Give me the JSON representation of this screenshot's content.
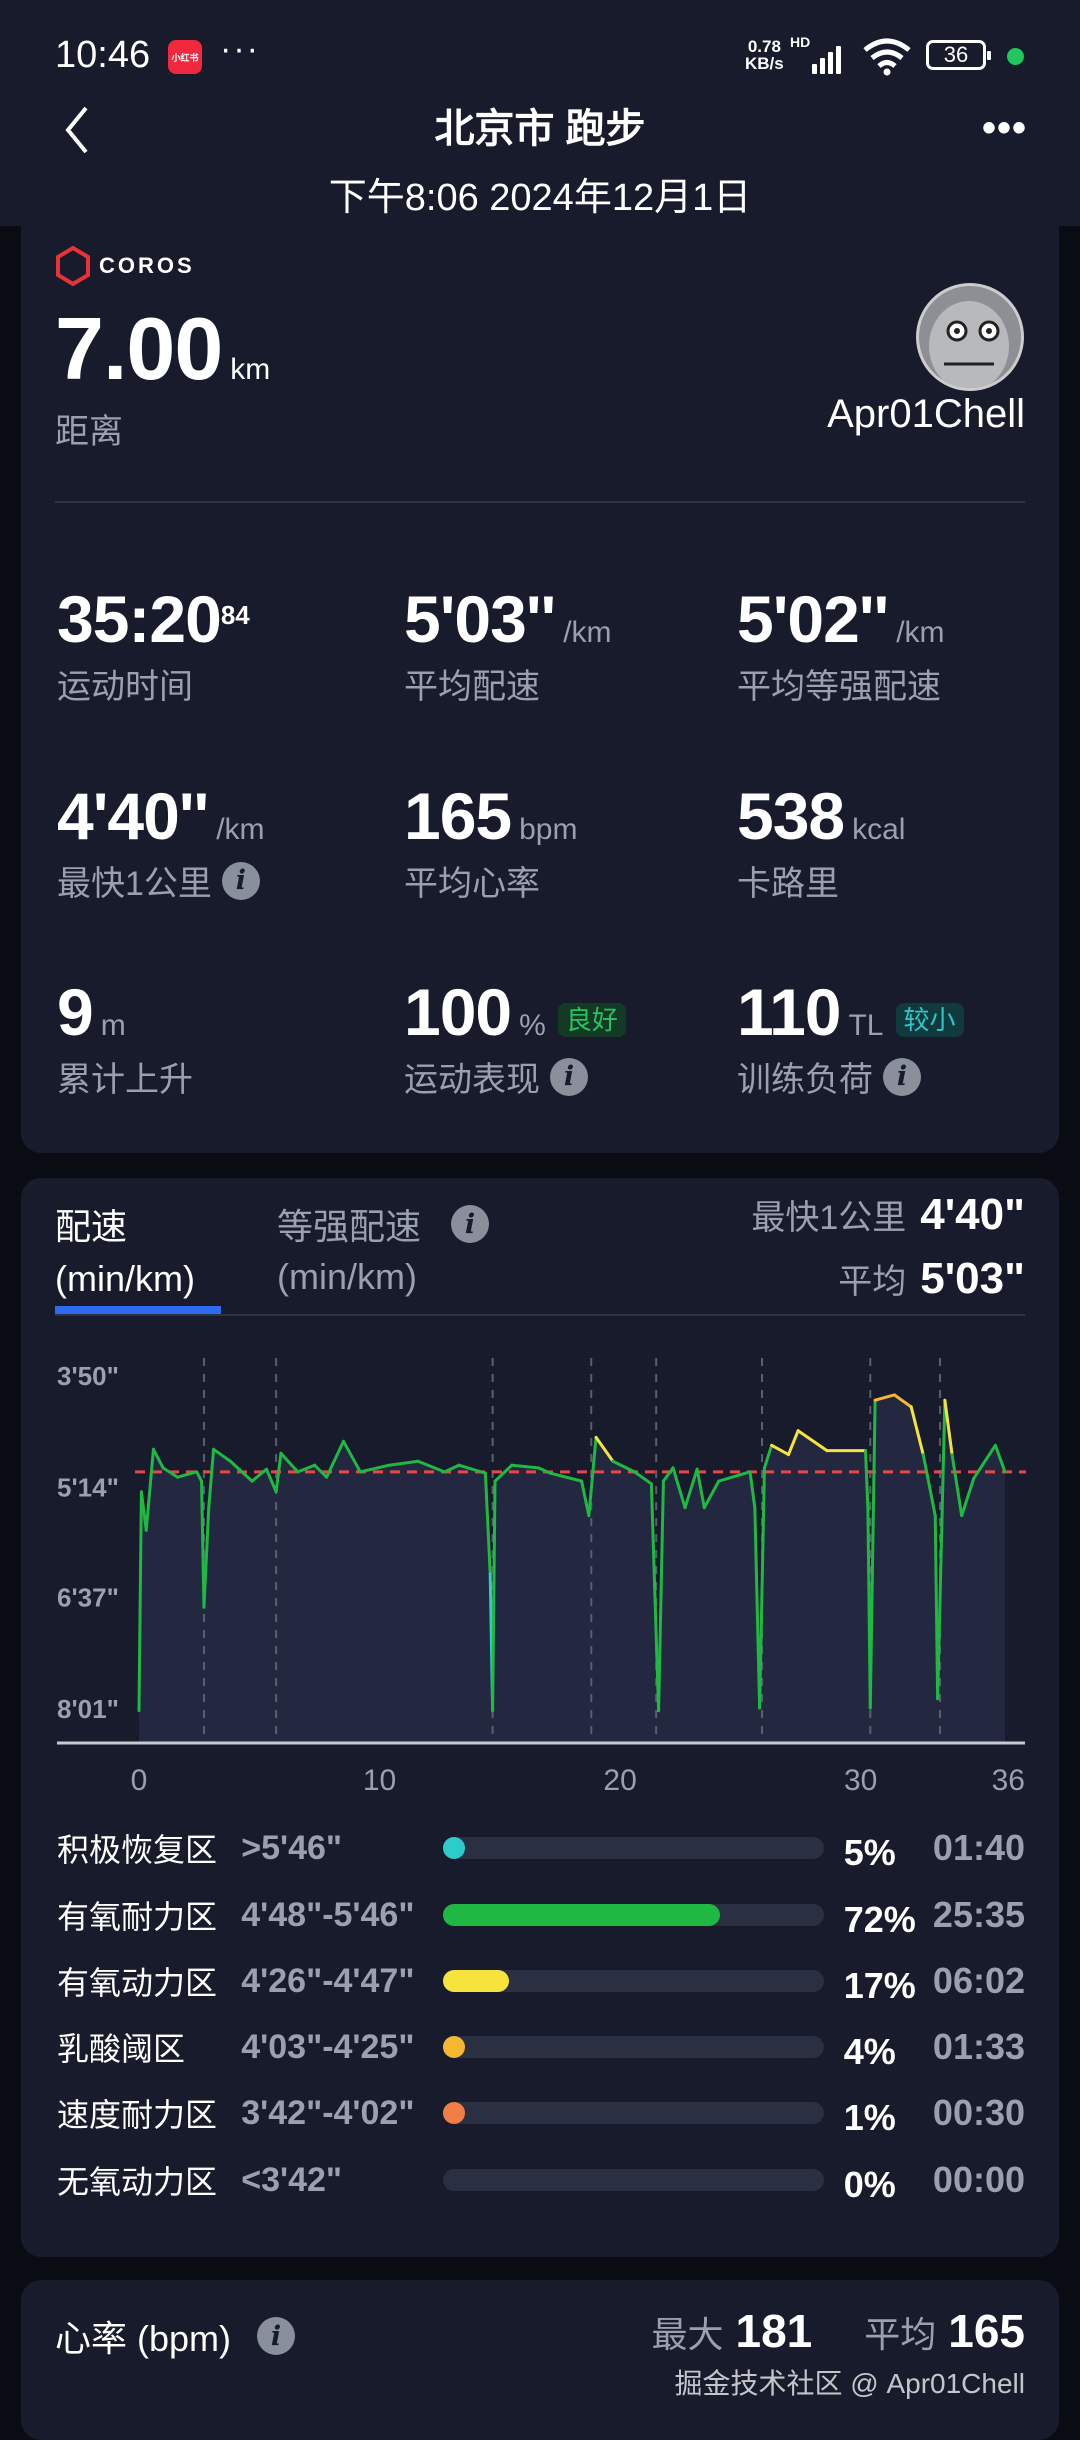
{
  "status_bar": {
    "time": "10:46",
    "app_badge": "小红书",
    "more": "···",
    "net_speed": "0.78",
    "net_unit": "KB/s",
    "network": "HD",
    "battery": "36"
  },
  "header": {
    "title": "北京市 跑步",
    "subtitle": "下午8:06 2024年12月1日"
  },
  "summary": {
    "brand": "COROS",
    "distance": {
      "value": "7.00",
      "unit": "km",
      "label": "距离"
    },
    "user": "Apr01Chell",
    "stats": [
      {
        "value": "35:20",
        "sup": "84",
        "unit": "",
        "label": "运动时间"
      },
      {
        "value": "5'03''",
        "unit": "/km",
        "label": "平均配速"
      },
      {
        "value": "5'02''",
        "unit": "/km",
        "label": "平均等强配速"
      },
      {
        "value": "4'40''",
        "unit": "/km",
        "label": "最快1公里",
        "info": true
      },
      {
        "value": "165",
        "unit": "bpm",
        "label": "平均心率"
      },
      {
        "value": "538",
        "unit": "kcal",
        "label": "卡路里"
      },
      {
        "value": "9",
        "unit": "m",
        "label": "累计上升"
      },
      {
        "value": "100",
        "unit": "%",
        "label": "运动表现",
        "badge": "良好",
        "info": true
      },
      {
        "value": "110",
        "unit": "TL",
        "label": "训练负荷",
        "badge": "较小",
        "info": true
      }
    ]
  },
  "pace": {
    "tabs": [
      {
        "label": "配速",
        "unit": "(min/km)",
        "active": true
      },
      {
        "label": "等强配速",
        "unit": "(min/km)",
        "active": false
      }
    ],
    "fastest_label": "最快1公里",
    "fastest_value": "4'40\"",
    "avg_label": "平均",
    "avg_value": "5'03\"",
    "zones": [
      {
        "name": "积极恢复区",
        "range": ">5'46\"",
        "pct": "5%",
        "time": "01:40",
        "fraction": 0.05,
        "color": "#2ecbcb"
      },
      {
        "name": "有氧耐力区",
        "range": "4'48\"-5'46\"",
        "pct": "72%",
        "time": "25:35",
        "fraction": 0.72,
        "color": "#1fb843"
      },
      {
        "name": "有氧动力区",
        "range": "4'26\"-4'47\"",
        "pct": "17%",
        "time": "06:02",
        "fraction": 0.17,
        "color": "#f6e43c"
      },
      {
        "name": "乳酸阈区",
        "range": "4'03\"-4'25\"",
        "pct": "4%",
        "time": "01:33",
        "fraction": 0.04,
        "color": "#f5b731"
      },
      {
        "name": "速度耐力区",
        "range": "3'42\"-4'02\"",
        "pct": "1%",
        "time": "00:30",
        "fraction": 0.01,
        "color": "#f07e45"
      },
      {
        "name": "无氧动力区",
        "range": "<3'42\"",
        "pct": "0%",
        "time": "00:00",
        "fraction": 0,
        "color": "#e0443e"
      }
    ]
  },
  "chart_data": {
    "type": "line",
    "x_ticks": [
      "0",
      "10",
      "20",
      "30",
      "36"
    ],
    "x_tick_values": [
      0,
      10,
      20,
      30,
      36
    ],
    "y_ticks": [
      "3'50\"",
      "5'14\"",
      "6'37\"",
      "8'01\""
    ],
    "y_inverted": true,
    "xlim": [
      0,
      36
    ],
    "ylim": [
      "3'50\"",
      "8'01\""
    ],
    "average_line": "5'03\"",
    "split_markers": [
      2.7,
      5.7,
      14.7,
      18.8,
      21.5,
      25.9,
      30.4,
      33.3
    ],
    "points": [
      [
        0,
        "8'03\""
      ],
      [
        0.1,
        "5'18\""
      ],
      [
        0.3,
        "5'47\""
      ],
      [
        0.6,
        "4'46\""
      ],
      [
        1.0,
        "5'00\""
      ],
      [
        1.6,
        "5'07\""
      ],
      [
        2.4,
        "5'03\""
      ],
      [
        2.6,
        "5'10\""
      ],
      [
        2.7,
        "6'45\""
      ],
      [
        2.9,
        "5'30\""
      ],
      [
        3.1,
        "4'46\""
      ],
      [
        3.8,
        "4'55\""
      ],
      [
        4.7,
        "5'10\""
      ],
      [
        5.3,
        "5'01\""
      ],
      [
        5.7,
        "5'18\""
      ],
      [
        5.9,
        "4'49\""
      ],
      [
        6.6,
        "5'03\""
      ],
      [
        7.3,
        "4'58\""
      ],
      [
        7.8,
        "5'07\""
      ],
      [
        8.5,
        "4'40\""
      ],
      [
        9.2,
        "5'03\""
      ],
      [
        10.4,
        "4'58\""
      ],
      [
        11.6,
        "4'55\""
      ],
      [
        12.7,
        "5'03\""
      ],
      [
        13.3,
        "4'58\""
      ],
      [
        14.4,
        "5'04\""
      ],
      [
        14.6,
        "6'20\""
      ],
      [
        14.7,
        "8'03\""
      ],
      [
        14.8,
        "5'10\""
      ],
      [
        15.5,
        "4'58\""
      ],
      [
        16.6,
        "5'00\""
      ],
      [
        17.1,
        "5'04\""
      ],
      [
        18.4,
        "5'10\""
      ],
      [
        18.7,
        "5'36\""
      ],
      [
        19.0,
        "4'37\""
      ],
      [
        19.7,
        "4'55\""
      ],
      [
        20.6,
        "5'03\""
      ],
      [
        21.3,
        "5'12\""
      ],
      [
        21.6,
        "8'03\""
      ],
      [
        21.8,
        "5'10\""
      ],
      [
        22.2,
        "5'00\""
      ],
      [
        22.7,
        "5'30\""
      ],
      [
        23.2,
        "5'01\""
      ],
      [
        23.5,
        "5'30\""
      ],
      [
        24.1,
        "5'10\""
      ],
      [
        25.4,
        "5'03\""
      ],
      [
        25.6,
        "5'30\""
      ],
      [
        25.8,
        "8'01\""
      ],
      [
        26.0,
        "5'00\""
      ],
      [
        26.3,
        "4'43\""
      ],
      [
        27.0,
        "4'50\""
      ],
      [
        27.4,
        "4'32\""
      ],
      [
        28.6,
        "4'47\""
      ],
      [
        30.2,
        "4'47\""
      ],
      [
        30.3,
        "5'30\""
      ],
      [
        30.4,
        "8'01\""
      ],
      [
        30.6,
        "4'09\""
      ],
      [
        31.4,
        "4'05\""
      ],
      [
        32.1,
        "4'14\""
      ],
      [
        32.6,
        "4'50\""
      ],
      [
        33.1,
        "5'36\""
      ],
      [
        33.2,
        "7'54\""
      ],
      [
        33.5,
        "4'09\""
      ],
      [
        33.8,
        "4'50\""
      ],
      [
        34.2,
        "5'36\""
      ],
      [
        34.7,
        "5'08\""
      ],
      [
        35.6,
        "4'43\""
      ],
      [
        36.0,
        "5'03\""
      ]
    ]
  },
  "heart_rate": {
    "title": "心率 (bpm)",
    "max_label": "最大",
    "max_value": "181",
    "avg_label": "平均",
    "avg_value": "165"
  },
  "watermark": "掘金技术社区 @ Apr01Chell",
  "colors": {
    "accent": "#2f6bf0",
    "avg_line": "#e8474a",
    "good": "#22c55e",
    "low": "#2ec6c6"
  }
}
